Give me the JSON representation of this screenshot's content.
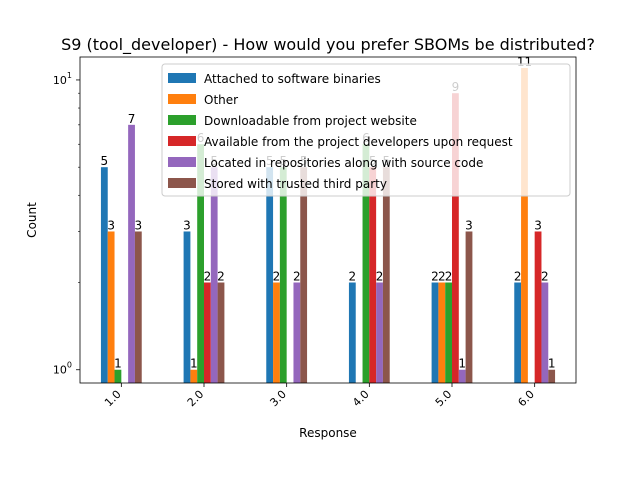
{
  "chart_data": {
    "type": "bar",
    "title": "S9 (tool_developer) - How would you prefer SBOMs be distributed?",
    "xlabel": "Response",
    "ylabel": "Count",
    "yscale": "log",
    "ylim": [
      0.9,
      12
    ],
    "yticks": [
      {
        "value": 1,
        "label": "10^0"
      },
      {
        "value": 10,
        "label": "10^1"
      }
    ],
    "categories": [
      "1.0",
      "2.0",
      "3.0",
      "4.0",
      "5.0",
      "6.0"
    ],
    "legend_position": "top-right",
    "grid": false,
    "series": [
      {
        "name": "Attached to software binaries",
        "color": "#1f77b4",
        "values": [
          5,
          3,
          5,
          2,
          2,
          2
        ]
      },
      {
        "name": "Other",
        "color": "#ff7f0e",
        "values": [
          3,
          1,
          2,
          null,
          2,
          11
        ]
      },
      {
        "name": "Downloadable from project website",
        "color": "#2ca02c",
        "values": [
          1,
          6,
          5,
          6,
          2,
          null
        ]
      },
      {
        "name": "Available from the project developers upon request",
        "color": "#d62728",
        "values": [
          null,
          2,
          null,
          5,
          9,
          3
        ]
      },
      {
        "name": "Located in repositories along with source code",
        "color": "#9467bd",
        "values": [
          7,
          5,
          2,
          2,
          1,
          2
        ]
      },
      {
        "name": "Stored with trusted third party",
        "color": "#8c564b",
        "values": [
          3,
          2,
          5,
          5,
          3,
          1
        ]
      }
    ]
  }
}
